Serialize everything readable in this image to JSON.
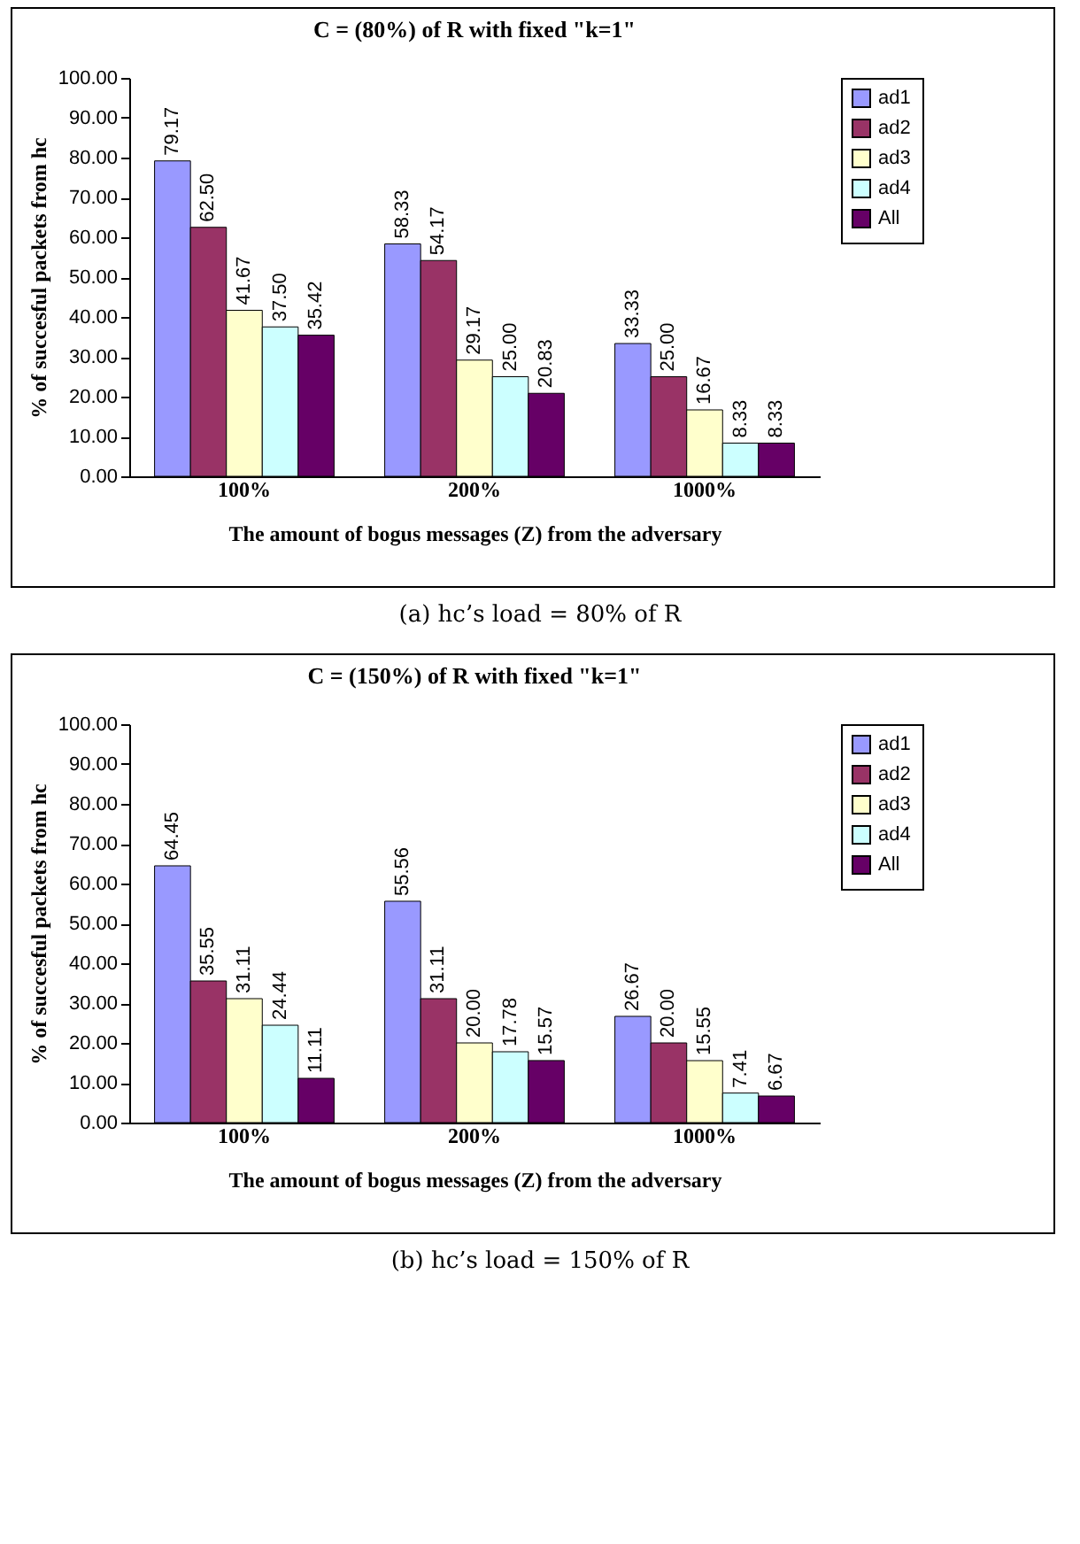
{
  "chart_data": [
    {
      "type": "bar",
      "title": "C = (80%) of R with fixed \"k=1\"",
      "xlabel": "The amount of bogus messages (Z) from the adversary",
      "ylabel": "% of succesful packets from hc",
      "categories": [
        "100%",
        "200%",
        "1000%"
      ],
      "ylim": [
        0,
        100
      ],
      "yticks": [
        {
          "value": 0,
          "label": "0.00"
        },
        {
          "value": 10,
          "label": "10.00"
        },
        {
          "value": 20,
          "label": "20.00"
        },
        {
          "value": 30,
          "label": "30.00"
        },
        {
          "value": 40,
          "label": "40.00"
        },
        {
          "value": 50,
          "label": "50.00"
        },
        {
          "value": 60,
          "label": "60.00"
        },
        {
          "value": 70,
          "label": "70.00"
        },
        {
          "value": 80,
          "label": "80.00"
        },
        {
          "value": 90,
          "label": "90.00"
        },
        {
          "value": 100,
          "label": "100.00"
        }
      ],
      "grid": false,
      "legend": "right",
      "annotations": [
        "(a) hc’s load = 80% of R"
      ],
      "series": [
        {
          "name": "ad1",
          "color": "#9999ff",
          "values": [
            79.17,
            58.33,
            33.33
          ],
          "value_labels": [
            "79.17",
            "58.33",
            "33.33"
          ]
        },
        {
          "name": "ad2",
          "color": "#993366",
          "values": [
            62.5,
            54.17,
            25
          ],
          "value_labels": [
            "62.50",
            "54.17",
            "25.00"
          ]
        },
        {
          "name": "ad3",
          "color": "#ffffcc",
          "values": [
            41.67,
            29.17,
            16.67
          ],
          "value_labels": [
            "41.67",
            "29.17",
            "16.67"
          ]
        },
        {
          "name": "ad4",
          "color": "#ccffff",
          "values": [
            37.5,
            25,
            8.33
          ],
          "value_labels": [
            "37.50",
            "25.00",
            "8.33"
          ]
        },
        {
          "name": "All",
          "color": "#660066",
          "values": [
            35.42,
            20.83,
            8.33
          ],
          "value_labels": [
            "35.42",
            "20.83",
            "8.33"
          ]
        }
      ]
    },
    {
      "type": "bar",
      "title": "C = (150%) of R with fixed \"k=1\"",
      "xlabel": "The amount of bogus messages (Z) from the adversary",
      "ylabel": "% of succesful packets from hc",
      "categories": [
        "100%",
        "200%",
        "1000%"
      ],
      "ylim": [
        0,
        100
      ],
      "yticks": [
        {
          "value": 0,
          "label": "0.00"
        },
        {
          "value": 10,
          "label": "10.00"
        },
        {
          "value": 20,
          "label": "20.00"
        },
        {
          "value": 30,
          "label": "30.00"
        },
        {
          "value": 40,
          "label": "40.00"
        },
        {
          "value": 50,
          "label": "50.00"
        },
        {
          "value": 60,
          "label": "60.00"
        },
        {
          "value": 70,
          "label": "70.00"
        },
        {
          "value": 80,
          "label": "80.00"
        },
        {
          "value": 90,
          "label": "90.00"
        },
        {
          "value": 100,
          "label": "100.00"
        }
      ],
      "grid": false,
      "legend": "right",
      "annotations": [
        "(b) hc’s load = 150% of R"
      ],
      "series": [
        {
          "name": "ad1",
          "color": "#9999ff",
          "values": [
            64.45,
            55.56,
            26.67
          ],
          "value_labels": [
            "64.45",
            "55.56",
            "26.67"
          ]
        },
        {
          "name": "ad2",
          "color": "#993366",
          "values": [
            35.55,
            31.11,
            20
          ],
          "value_labels": [
            "35.55",
            "31.11",
            "20.00"
          ]
        },
        {
          "name": "ad3",
          "color": "#ffffcc",
          "values": [
            31.11,
            20,
            15.55
          ],
          "value_labels": [
            "31.11",
            "20.00",
            "15.55"
          ]
        },
        {
          "name": "ad4",
          "color": "#ccffff",
          "values": [
            24.44,
            17.78,
            7.41
          ],
          "value_labels": [
            "24.44",
            "17.78",
            "7.41"
          ]
        },
        {
          "name": "All",
          "color": "#660066",
          "values": [
            11.11,
            15.57,
            6.67
          ],
          "value_labels": [
            "11.11",
            "15.57",
            "6.67"
          ]
        }
      ]
    }
  ]
}
